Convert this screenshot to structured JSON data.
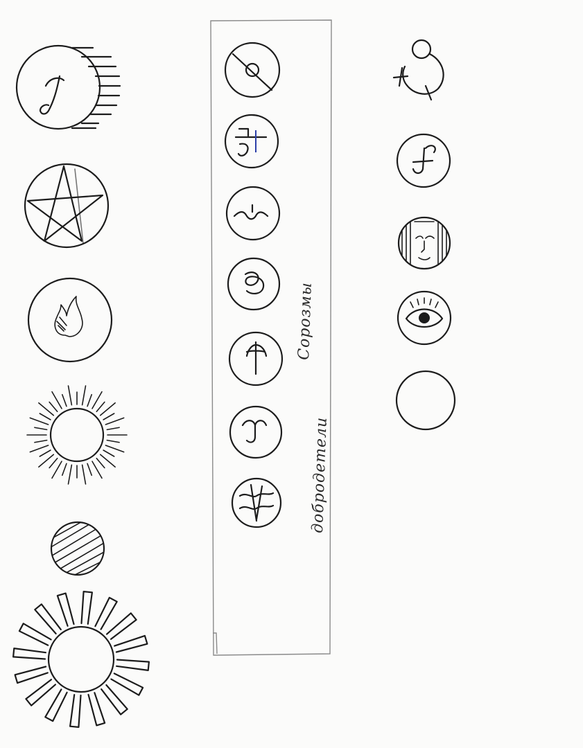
{
  "labels": {
    "column_right": "Сорозмы",
    "column_left": "добродетели"
  },
  "colors": {
    "ink": "#1c1c1c",
    "paper": "#fbfbfa",
    "frame": "#8a8a8a",
    "blue_ink": "#2b3fa8"
  },
  "icons": {
    "left_column": [
      "letter-j-sun-icon",
      "pentagram-icon",
      "flame-icon",
      "radiant-sun-icon",
      "hatched-moon-icon",
      "block-ray-sun-icon"
    ],
    "middle_column": [
      "crossed-circle-icon",
      "three-bar-glyph-icon",
      "wave-glyph-icon",
      "loop-glyph-icon",
      "trident-glyph-icon",
      "curl-glyph-icon",
      "crossed-waves-glyph-icon"
    ],
    "right_column": [
      "orbit-circle-icon",
      "letter-f-icon",
      "face-icon",
      "eye-icon",
      "empty-circle-icon"
    ]
  }
}
